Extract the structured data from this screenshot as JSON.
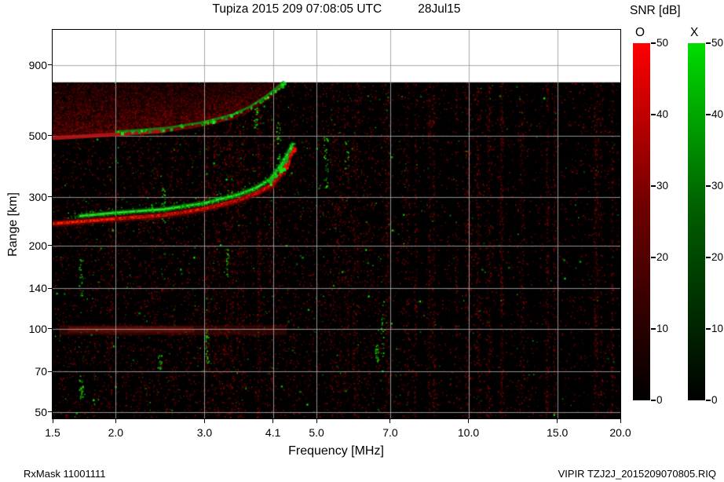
{
  "header": {
    "title_main": "Tupiza 2015 209 07:08:05 UTC",
    "title_date": "28Jul15"
  },
  "footer": {
    "left": "RxMask 11001111",
    "right": "VIPIR  TZJ2J_2015209070805.RIQ"
  },
  "chart_data": {
    "type": "heatmap",
    "subtype": "ionogram",
    "title": "Tupiza 2015 209 07:08:05 UTC 28Jul15",
    "xlabel": "Frequency [MHz]",
    "ylabel": "Range [km]",
    "x_scale": "log",
    "y_scale": "log",
    "xlim": [
      1.5,
      20
    ],
    "ylim_km": [
      47.4,
      1208
    ],
    "x_tick_values": [
      1.5,
      2.0,
      3.0,
      4.1,
      5.0,
      7.0,
      10.0,
      15.0,
      20.0
    ],
    "x_tick_labels": [
      "1.5",
      "2.0",
      "3.0",
      "4.1",
      "5.0",
      "7.0",
      "10.0",
      "15.0",
      "20.0"
    ],
    "y_tick_values": [
      50,
      70,
      100,
      140,
      200,
      300,
      500,
      900
    ],
    "y_tick_labels": [
      "50",
      "70",
      "100",
      "140",
      "200",
      "300",
      "500",
      "900"
    ],
    "grid": true,
    "max_data_range_km": 780,
    "background_color": "#000000",
    "no_data_color": "#ffffff",
    "colorbar": {
      "title": "SNR [dB]",
      "min": 0,
      "max": 50,
      "ticks": [
        0,
        10,
        20,
        30,
        40,
        50
      ],
      "bars": [
        {
          "label": "O",
          "low_color": "#000000",
          "mid_color": "#700000",
          "high_color": "#ff0000"
        },
        {
          "label": "X",
          "low_color": "#000000",
          "mid_color": "#006200",
          "high_color": "#00dd00"
        }
      ]
    },
    "traces": {
      "o_mode_first_hop_f_km": [
        [
          1.5,
          240
        ],
        [
          2.0,
          250
        ],
        [
          2.5,
          258
        ],
        [
          3.0,
          272
        ],
        [
          3.5,
          292
        ],
        [
          3.8,
          310
        ],
        [
          4.1,
          333
        ],
        [
          4.3,
          375
        ],
        [
          4.42,
          420
        ],
        [
          4.5,
          450
        ]
      ],
      "x_mode_first_hop_f_km": [
        [
          1.7,
          256
        ],
        [
          2.0,
          263
        ],
        [
          2.5,
          271
        ],
        [
          3.0,
          285
        ],
        [
          3.5,
          306
        ],
        [
          3.8,
          324
        ],
        [
          4.05,
          348
        ],
        [
          4.25,
          390
        ],
        [
          4.4,
          435
        ],
        [
          4.48,
          465
        ]
      ],
      "o_mode_second_hop_f_km": [
        [
          1.5,
          490
        ],
        [
          2.0,
          505
        ],
        [
          2.5,
          520
        ],
        [
          3.0,
          548
        ],
        [
          3.4,
          580
        ],
        [
          3.7,
          620
        ],
        [
          3.95,
          670
        ],
        [
          4.15,
          720
        ],
        [
          4.3,
          770
        ]
      ],
      "x_mode_second_hop_f_km": [
        [
          2.0,
          516
        ],
        [
          2.5,
          532
        ],
        [
          3.0,
          560
        ],
        [
          3.4,
          595
        ],
        [
          3.7,
          638
        ],
        [
          3.95,
          690
        ],
        [
          4.15,
          740
        ],
        [
          4.3,
          782
        ]
      ],
      "critical_frequency_foF2_MHz": 4.5,
      "spread_f_region": {
        "f_range_MHz": [
          1.5,
          4.35
        ],
        "top_km": 780
      },
      "interference_band_km": [
        95,
        103
      ]
    },
    "noise_seed": 20150728
  }
}
